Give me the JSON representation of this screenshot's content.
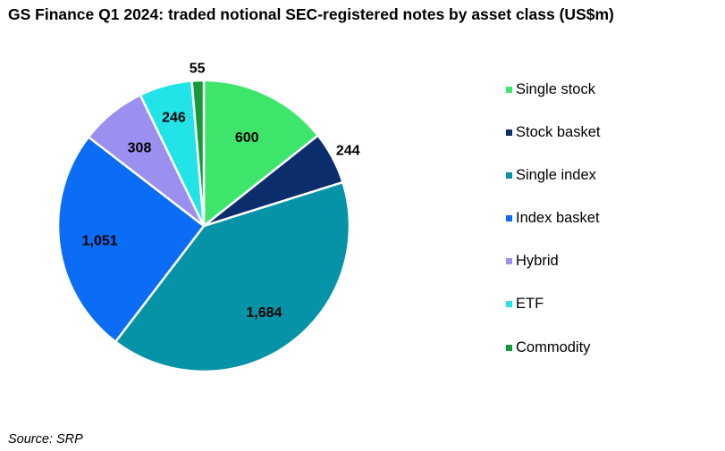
{
  "title": "GS Finance Q1 2024: traded notional SEC-registered notes by asset class (US$m)",
  "source": "Source: SRP",
  "chart_data": {
    "type": "pie",
    "title": "GS Finance Q1 2024: traded notional SEC-registered notes by asset class (US$m)",
    "legend_position": "right",
    "slices": [
      {
        "label": "Single stock",
        "value": 600,
        "value_label": "600",
        "color": "#3de66b"
      },
      {
        "label": "Stock basket",
        "value": 244,
        "value_label": "244",
        "color": "#0c2d6b"
      },
      {
        "label": "Single index",
        "value": 1684,
        "value_label": "1,684",
        "color": "#0693a8"
      },
      {
        "label": "Index basket",
        "value": 1051,
        "value_label": "1,051",
        "color": "#0b6cf5"
      },
      {
        "label": "Hybrid",
        "value": 308,
        "value_label": "308",
        "color": "#9b8ff0"
      },
      {
        "label": "ETF",
        "value": 246,
        "value_label": "246",
        "color": "#22e3e8"
      },
      {
        "label": "Commodity",
        "value": 55,
        "value_label": "55",
        "color": "#189a3a"
      }
    ]
  }
}
